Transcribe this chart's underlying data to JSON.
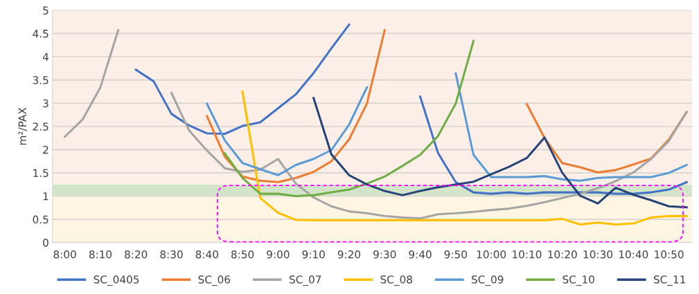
{
  "chart_data": {
    "type": "line",
    "categories": [
      "8:00",
      null,
      "8:10",
      null,
      "8:20",
      null,
      "8:30",
      null,
      "8:40",
      null,
      "8:50",
      null,
      "9:00",
      null,
      "9:10",
      null,
      "9:20",
      null,
      "9:30",
      null,
      "9:40",
      null,
      "9:50",
      null,
      "10:00",
      null,
      "10:10",
      null,
      "10:20",
      null,
      "10:30",
      null,
      "10:40",
      null,
      "10:50",
      null
    ],
    "ylabel": "m²/PAX",
    "ylim": [
      0,
      5
    ],
    "yticks": [
      0,
      0.5,
      1,
      1.5,
      2,
      2.5,
      3,
      3.5,
      4,
      4.5,
      5
    ],
    "grid": "y",
    "legend": "bottom",
    "marker": "none",
    "line_style": "solid",
    "bands": [
      {
        "axis": "y",
        "from": 0,
        "to": 1,
        "label": null,
        "color": "#fff5e3"
      },
      {
        "axis": "y",
        "from": 1,
        "to": 1.25,
        "label": null,
        "color": "#d3e5c8"
      },
      {
        "axis": "y",
        "from": 1.25,
        "to": 5,
        "label": null,
        "color": "#fbefe7"
      }
    ],
    "series": [
      {
        "name": "SC_0405",
        "color": "#4472c4",
        "values": [
          null,
          null,
          null,
          null,
          3.72,
          3.47,
          2.77,
          2.52,
          2.35,
          2.34,
          2.51,
          2.59,
          2.89,
          3.19,
          3.65,
          4.18,
          4.69,
          null,
          null,
          null,
          3.14,
          1.93,
          1.3,
          1.08,
          1.05,
          1.08,
          1.05,
          1.08,
          1.08,
          1.08,
          1.08,
          1.05,
          1.05,
          1.08,
          1.14,
          1.3
        ]
      },
      {
        "name": "SC_06",
        "color": "#ed7d31",
        "values": [
          null,
          null,
          null,
          null,
          null,
          null,
          null,
          null,
          2.72,
          1.85,
          1.42,
          1.33,
          1.3,
          1.39,
          1.52,
          1.75,
          2.22,
          2.99,
          4.57,
          null,
          null,
          null,
          null,
          null,
          null,
          null,
          2.98,
          2.25,
          1.71,
          1.62,
          1.51,
          1.56,
          1.68,
          1.81,
          2.22,
          2.81
        ]
      },
      {
        "name": "SC_07",
        "color": "#a5a5a5",
        "values": [
          2.28,
          2.65,
          3.34,
          4.57,
          null,
          null,
          3.22,
          2.41,
          1.98,
          1.6,
          1.52,
          1.57,
          1.8,
          1.27,
          0.97,
          0.78,
          0.67,
          0.63,
          0.57,
          0.54,
          0.52,
          0.61,
          0.63,
          0.66,
          0.7,
          0.73,
          0.79,
          0.87,
          0.96,
          1.05,
          1.17,
          1.32,
          1.51,
          1.8,
          2.19,
          2.81
        ]
      },
      {
        "name": "SC_08",
        "color": "#ffc000",
        "values": [
          null,
          null,
          null,
          null,
          null,
          null,
          null,
          null,
          null,
          null,
          3.25,
          0.96,
          0.64,
          0.49,
          0.48,
          0.48,
          0.48,
          0.48,
          0.48,
          0.48,
          0.48,
          0.48,
          0.48,
          0.48,
          0.48,
          0.48,
          0.48,
          0.48,
          0.51,
          0.39,
          0.43,
          0.39,
          0.41,
          0.54,
          0.57,
          0.57
        ]
      },
      {
        "name": "SC_09",
        "color": "#5b9bd5",
        "values": [
          null,
          null,
          null,
          null,
          null,
          null,
          null,
          null,
          2.99,
          2.2,
          1.71,
          1.58,
          1.45,
          1.67,
          1.8,
          1.99,
          2.54,
          3.34,
          null,
          null,
          null,
          null,
          3.64,
          1.89,
          1.41,
          1.41,
          1.41,
          1.43,
          1.36,
          1.33,
          1.39,
          1.41,
          1.41,
          1.41,
          1.5,
          1.67
        ]
      },
      {
        "name": "SC_10",
        "color": "#70ad47",
        "values": [
          null,
          null,
          null,
          null,
          null,
          null,
          null,
          null,
          null,
          1.92,
          1.39,
          1.05,
          1.05,
          1.0,
          1.02,
          1.08,
          1.14,
          1.27,
          1.42,
          1.65,
          1.89,
          2.29,
          2.99,
          4.34,
          null,
          null,
          null,
          null,
          null,
          null,
          null,
          null,
          null,
          null,
          null,
          null
        ]
      },
      {
        "name": "SC_11",
        "color": "#264478",
        "values": [
          null,
          null,
          null,
          null,
          null,
          null,
          null,
          null,
          null,
          null,
          null,
          null,
          null,
          null,
          3.11,
          1.9,
          1.45,
          1.25,
          1.11,
          1.02,
          1.11,
          1.19,
          1.25,
          1.31,
          1.47,
          1.63,
          1.82,
          2.26,
          1.5,
          1.01,
          0.84,
          1.18,
          1.03,
          0.91,
          0.78,
          0.76
        ]
      }
    ]
  }
}
